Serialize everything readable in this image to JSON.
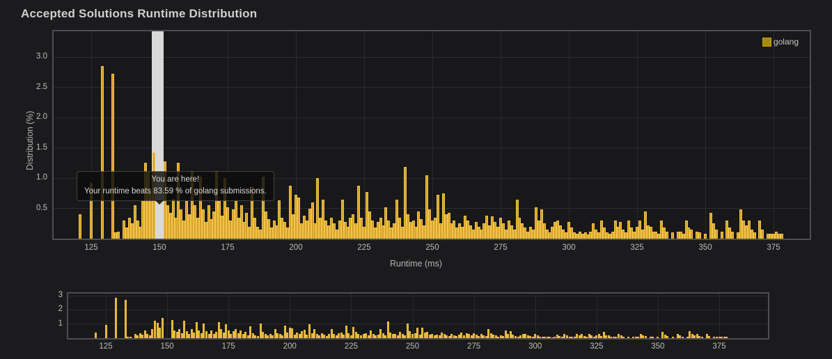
{
  "title": "Accepted Solutions Runtime Distribution",
  "legend": {
    "label": "golang",
    "color": "#a88a0a"
  },
  "tooltip": {
    "line1": "You are here!",
    "line2": "Your runtime beats 83.59 % of golang submissions."
  },
  "chart_data": {
    "type": "bar",
    "title": "Accepted Solutions Runtime Distribution",
    "xlabel": "Runtime (ms)",
    "ylabel": "Distribution (%)",
    "series_name": "golang",
    "bar_color": "#d6a22a",
    "bar_border_color": "#f2c64b",
    "x_ticks": [
      125,
      150,
      175,
      200,
      225,
      250,
      275,
      300,
      325,
      350,
      375
    ],
    "main_y_ticks": [
      0.5,
      1.0,
      1.5,
      2.0,
      2.5,
      3.0
    ],
    "nav_y_ticks": [
      1,
      2,
      3
    ],
    "x_range_main": [
      111,
      388
    ],
    "x_range_nav": [
      110,
      395
    ],
    "grid": true,
    "legend_position": "top-right",
    "highlight": {
      "runtime_ms": 148,
      "beats_percent": 83.59,
      "band_from": 147.3,
      "band_to": 151.6,
      "band_color": "rgba(238,238,238,0.9)"
    },
    "points": [
      [
        121,
        0.4
      ],
      [
        125,
        0.92
      ],
      [
        129,
        2.85
      ],
      [
        133,
        2.72
      ],
      [
        134,
        0.1
      ],
      [
        135,
        0.12
      ],
      [
        137,
        0.3
      ],
      [
        138,
        0.18
      ],
      [
        139,
        0.35
      ],
      [
        140,
        0.25
      ],
      [
        141,
        0.55
      ],
      [
        142,
        0.3
      ],
      [
        143,
        0.2
      ],
      [
        144,
        0.62
      ],
      [
        145,
        1.25
      ],
      [
        146,
        1.1
      ],
      [
        147,
        0.75
      ],
      [
        148,
        1.42
      ],
      [
        152,
        1.28
      ],
      [
        153,
        0.55
      ],
      [
        154,
        0.42
      ],
      [
        155,
        0.65
      ],
      [
        156,
        0.35
      ],
      [
        157,
        1.25
      ],
      [
        158,
        0.48
      ],
      [
        159,
        0.3
      ],
      [
        160,
        0.62
      ],
      [
        161,
        0.4
      ],
      [
        162,
        1.12
      ],
      [
        163,
        0.55
      ],
      [
        164,
        0.35
      ],
      [
        165,
        1.02
      ],
      [
        166,
        0.48
      ],
      [
        167,
        0.28
      ],
      [
        168,
        0.55
      ],
      [
        169,
        0.32
      ],
      [
        170,
        0.45
      ],
      [
        171,
        1.12
      ],
      [
        172,
        0.62
      ],
      [
        173,
        0.38
      ],
      [
        174,
        1.0
      ],
      [
        175,
        0.52
      ],
      [
        176,
        0.3
      ],
      [
        177,
        0.48
      ],
      [
        178,
        0.62
      ],
      [
        179,
        0.35
      ],
      [
        180,
        0.55
      ],
      [
        181,
        0.28
      ],
      [
        182,
        0.42
      ],
      [
        183,
        0.2
      ],
      [
        184,
        0.85
      ],
      [
        185,
        0.35
      ],
      [
        186,
        0.2
      ],
      [
        187,
        0.15
      ],
      [
        188,
        1.02
      ],
      [
        189,
        0.45
      ],
      [
        190,
        0.32
      ],
      [
        191,
        0.18
      ],
      [
        192,
        0.3
      ],
      [
        193,
        0.22
      ],
      [
        194,
        0.63
      ],
      [
        195,
        0.35
      ],
      [
        196,
        0.28
      ],
      [
        197,
        0.18
      ],
      [
        198,
        0.87
      ],
      [
        199,
        0.4
      ],
      [
        200,
        0.73
      ],
      [
        201,
        0.68
      ],
      [
        202,
        0.25
      ],
      [
        203,
        0.38
      ],
      [
        204,
        0.3
      ],
      [
        205,
        0.49
      ],
      [
        206,
        0.6
      ],
      [
        207,
        0.25
      ],
      [
        208,
        1.0
      ],
      [
        209,
        0.35
      ],
      [
        210,
        0.64
      ],
      [
        211,
        0.3
      ],
      [
        212,
        0.22
      ],
      [
        213,
        0.35
      ],
      [
        214,
        0.25
      ],
      [
        215,
        0.15
      ],
      [
        216,
        0.3
      ],
      [
        217,
        0.64
      ],
      [
        218,
        0.28
      ],
      [
        219,
        0.2
      ],
      [
        220,
        0.35
      ],
      [
        221,
        0.4
      ],
      [
        222,
        0.25
      ],
      [
        223,
        0.87
      ],
      [
        224,
        0.35
      ],
      [
        225,
        0.2
      ],
      [
        226,
        0.77
      ],
      [
        227,
        0.45
      ],
      [
        228,
        0.3
      ],
      [
        229,
        0.18
      ],
      [
        230,
        0.28
      ],
      [
        231,
        0.35
      ],
      [
        232,
        0.22
      ],
      [
        233,
        0.52
      ],
      [
        234,
        0.3
      ],
      [
        235,
        0.18
      ],
      [
        236,
        0.25
      ],
      [
        237,
        0.64
      ],
      [
        238,
        0.35
      ],
      [
        239,
        0.2
      ],
      [
        240,
        1.18
      ],
      [
        241,
        0.4
      ],
      [
        242,
        0.28
      ],
      [
        243,
        0.3
      ],
      [
        244,
        0.2
      ],
      [
        245,
        0.45
      ],
      [
        246,
        0.32
      ],
      [
        247,
        0.22
      ],
      [
        248,
        1.05
      ],
      [
        249,
        0.48
      ],
      [
        250,
        0.3
      ],
      [
        251,
        0.35
      ],
      [
        252,
        0.72
      ],
      [
        253,
        0.25
      ],
      [
        254,
        0.75
      ],
      [
        255,
        0.4
      ],
      [
        256,
        0.42
      ],
      [
        257,
        0.25
      ],
      [
        258,
        0.3
      ],
      [
        259,
        0.18
      ],
      [
        260,
        0.25
      ],
      [
        261,
        0.2
      ],
      [
        262,
        0.38
      ],
      [
        263,
        0.3
      ],
      [
        264,
        0.22
      ],
      [
        265,
        0.15
      ],
      [
        266,
        0.28
      ],
      [
        267,
        0.2
      ],
      [
        268,
        0.15
      ],
      [
        269,
        0.25
      ],
      [
        270,
        0.38
      ],
      [
        271,
        0.22
      ],
      [
        272,
        0.37
      ],
      [
        273,
        0.28
      ],
      [
        274,
        0.2
      ],
      [
        275,
        0.35
      ],
      [
        276,
        0.25
      ],
      [
        277,
        0.15
      ],
      [
        278,
        0.3
      ],
      [
        279,
        0.22
      ],
      [
        280,
        0.15
      ],
      [
        281,
        0.64
      ],
      [
        282,
        0.35
      ],
      [
        283,
        0.25
      ],
      [
        284,
        0.18
      ],
      [
        285,
        0.12
      ],
      [
        286,
        0.2
      ],
      [
        287,
        0.15
      ],
      [
        288,
        0.52
      ],
      [
        289,
        0.3
      ],
      [
        290,
        0.48
      ],
      [
        291,
        0.25
      ],
      [
        292,
        0.15
      ],
      [
        293,
        0.1
      ],
      [
        294,
        0.2
      ],
      [
        295,
        0.28
      ],
      [
        296,
        0.3
      ],
      [
        297,
        0.22
      ],
      [
        298,
        0.15
      ],
      [
        299,
        0.1
      ],
      [
        300,
        0.28
      ],
      [
        301,
        0.18
      ],
      [
        302,
        0.1
      ],
      [
        303,
        0.08
      ],
      [
        304,
        0.12
      ],
      [
        305,
        0.08
      ],
      [
        306,
        0.1
      ],
      [
        307,
        0.07
      ],
      [
        308,
        0.12
      ],
      [
        309,
        0.25
      ],
      [
        310,
        0.15
      ],
      [
        311,
        0.1
      ],
      [
        312,
        0.3
      ],
      [
        313,
        0.18
      ],
      [
        314,
        0.1
      ],
      [
        315,
        0.08
      ],
      [
        316,
        0.12
      ],
      [
        317,
        0.3
      ],
      [
        318,
        0.2
      ],
      [
        319,
        0.28
      ],
      [
        320,
        0.15
      ],
      [
        321,
        0.1
      ],
      [
        322,
        0.3
      ],
      [
        323,
        0.18
      ],
      [
        324,
        0.12
      ],
      [
        325,
        0.2
      ],
      [
        326,
        0.3
      ],
      [
        327,
        0.15
      ],
      [
        328,
        0.45
      ],
      [
        329,
        0.22
      ],
      [
        330,
        0.2
      ],
      [
        331,
        0.12
      ],
      [
        332,
        0.12
      ],
      [
        333,
        0.08
      ],
      [
        334,
        0.3
      ],
      [
        335,
        0.18
      ],
      [
        336,
        0.12
      ],
      [
        338,
        0.1
      ],
      [
        340,
        0.12
      ],
      [
        341,
        0.12
      ],
      [
        342,
        0.08
      ],
      [
        343,
        0.3
      ],
      [
        344,
        0.18
      ],
      [
        345,
        0.15
      ],
      [
        347,
        0.12
      ],
      [
        348,
        0.1
      ],
      [
        350,
        0.08
      ],
      [
        352,
        0.42
      ],
      [
        353,
        0.25
      ],
      [
        354,
        0.15
      ],
      [
        356,
        0.12
      ],
      [
        358,
        0.3
      ],
      [
        359,
        0.18
      ],
      [
        360,
        0.12
      ],
      [
        362,
        0.1
      ],
      [
        363,
        0.48
      ],
      [
        364,
        0.3
      ],
      [
        365,
        0.22
      ],
      [
        366,
        0.3
      ],
      [
        367,
        0.15
      ],
      [
        368,
        0.1
      ],
      [
        370,
        0.3
      ],
      [
        371,
        0.15
      ],
      [
        373,
        0.08
      ],
      [
        374,
        0.08
      ],
      [
        375,
        0.08
      ],
      [
        376,
        0.12
      ],
      [
        377,
        0.08
      ],
      [
        378,
        0.08
      ]
    ]
  }
}
